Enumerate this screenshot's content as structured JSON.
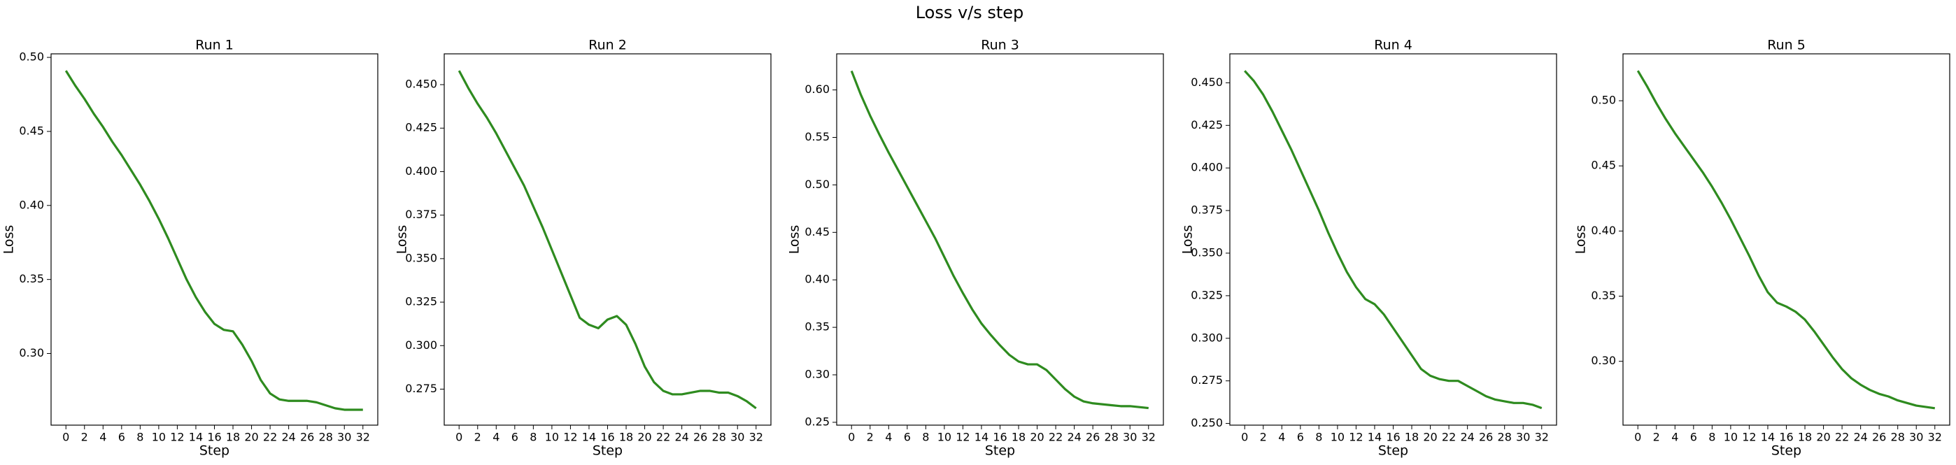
{
  "title": "Loss v/s step",
  "chart_data": [
    {
      "type": "line",
      "title": "Run 1",
      "xlabel": "Step",
      "ylabel": "Loss",
      "x": [
        0,
        1,
        2,
        3,
        4,
        5,
        6,
        7,
        8,
        9,
        10,
        11,
        12,
        13,
        14,
        15,
        16,
        17,
        18,
        19,
        20,
        21,
        22,
        23,
        24,
        25,
        26,
        27,
        28,
        29,
        30,
        31,
        32
      ],
      "series": [
        {
          "color": "#2e8b1f",
          "values": [
            0.491,
            0.481,
            0.472,
            0.462,
            0.453,
            0.443,
            0.434,
            0.424,
            0.414,
            0.403,
            0.391,
            0.378,
            0.364,
            0.35,
            0.338,
            0.328,
            0.32,
            0.316,
            0.315,
            0.306,
            0.295,
            0.282,
            0.273,
            0.269,
            0.268,
            0.268,
            0.268,
            0.267,
            0.265,
            0.263,
            0.262,
            0.262,
            0.262
          ]
        }
      ],
      "xlim": [
        -1.6,
        33.6
      ],
      "xticks": [
        0,
        2,
        4,
        6,
        8,
        10,
        12,
        14,
        16,
        18,
        20,
        22,
        24,
        26,
        28,
        30,
        32
      ],
      "ylim": [
        0.2516,
        0.5024
      ],
      "yticks": [
        {
          "value": 0.3,
          "label": "0.30"
        },
        0.35,
        {
          "value": 0.4,
          "label": "0.40"
        },
        0.45,
        {
          "value": 0.5,
          "label": "0.50"
        }
      ]
    },
    {
      "type": "line",
      "title": "Run 2",
      "xlabel": "Step",
      "ylabel": "Loss",
      "x": [
        0,
        1,
        2,
        3,
        4,
        5,
        6,
        7,
        8,
        9,
        10,
        11,
        12,
        13,
        14,
        15,
        16,
        17,
        18,
        19,
        20,
        21,
        22,
        23,
        24,
        25,
        26,
        27,
        28,
        29,
        30,
        31,
        32
      ],
      "series": [
        {
          "color": "#2e8b1f",
          "values": [
            0.458,
            0.448,
            0.439,
            0.431,
            0.422,
            0.412,
            0.402,
            0.392,
            0.38,
            0.368,
            0.355,
            0.342,
            0.329,
            0.316,
            0.312,
            0.31,
            0.315,
            0.317,
            0.312,
            0.301,
            0.288,
            0.279,
            0.274,
            0.272,
            0.272,
            0.273,
            0.274,
            0.274,
            0.273,
            0.273,
            0.271,
            0.268,
            0.264
          ]
        }
      ],
      "xlim": [
        -1.6,
        33.6
      ],
      "xticks": [
        0,
        2,
        4,
        6,
        8,
        10,
        12,
        14,
        16,
        18,
        20,
        22,
        24,
        26,
        28,
        30,
        32
      ],
      "ylim": [
        0.2543,
        0.4677
      ],
      "yticks": [
        0.275,
        {
          "value": 0.3,
          "label": "0.300"
        },
        0.325,
        {
          "value": 0.35,
          "label": "0.350"
        },
        0.375,
        {
          "value": 0.4,
          "label": "0.400"
        },
        0.425,
        {
          "value": 0.45,
          "label": "0.450"
        }
      ]
    },
    {
      "type": "line",
      "title": "Run 3",
      "xlabel": "Step",
      "ylabel": "Loss",
      "x": [
        0,
        1,
        2,
        3,
        4,
        5,
        6,
        7,
        8,
        9,
        10,
        11,
        12,
        13,
        14,
        15,
        16,
        17,
        18,
        19,
        20,
        21,
        22,
        23,
        24,
        25,
        26,
        27,
        28,
        29,
        30,
        31,
        32
      ],
      "series": [
        {
          "color": "#2e8b1f",
          "values": [
            0.62,
            0.595,
            0.573,
            0.553,
            0.534,
            0.516,
            0.498,
            0.48,
            0.462,
            0.444,
            0.424,
            0.404,
            0.386,
            0.369,
            0.354,
            0.342,
            0.331,
            0.321,
            0.314,
            0.311,
            0.311,
            0.305,
            0.295,
            0.285,
            0.277,
            0.272,
            0.27,
            0.269,
            0.268,
            0.267,
            0.267,
            0.266,
            0.265
          ]
        }
      ],
      "xlim": [
        -1.6,
        33.6
      ],
      "xticks": [
        0,
        2,
        4,
        6,
        8,
        10,
        12,
        14,
        16,
        18,
        20,
        22,
        24,
        26,
        28,
        30,
        32
      ],
      "ylim": [
        0.247,
        0.638
      ],
      "yticks": [
        0.25,
        {
          "value": 0.3,
          "label": "0.30"
        },
        0.35,
        {
          "value": 0.4,
          "label": "0.40"
        },
        0.45,
        {
          "value": 0.5,
          "label": "0.50"
        },
        0.55,
        {
          "value": 0.6,
          "label": "0.60"
        }
      ]
    },
    {
      "type": "line",
      "title": "Run 4",
      "xlabel": "Step",
      "ylabel": "Loss",
      "x": [
        0,
        1,
        2,
        3,
        4,
        5,
        6,
        7,
        8,
        9,
        10,
        11,
        12,
        13,
        14,
        15,
        16,
        17,
        18,
        19,
        20,
        21,
        22,
        23,
        24,
        25,
        26,
        27,
        28,
        29,
        30,
        31,
        32
      ],
      "series": [
        {
          "color": "#2e8b1f",
          "values": [
            0.457,
            0.451,
            0.443,
            0.433,
            0.422,
            0.411,
            0.399,
            0.387,
            0.375,
            0.362,
            0.35,
            0.339,
            0.33,
            0.323,
            0.32,
            0.314,
            0.306,
            0.298,
            0.29,
            0.282,
            0.278,
            0.276,
            0.275,
            0.275,
            0.272,
            0.269,
            0.266,
            0.264,
            0.263,
            0.262,
            0.262,
            0.261,
            0.259
          ]
        }
      ],
      "xlim": [
        -1.6,
        33.6
      ],
      "xticks": [
        0,
        2,
        4,
        6,
        8,
        10,
        12,
        14,
        16,
        18,
        20,
        22,
        24,
        26,
        28,
        30,
        32
      ],
      "ylim": [
        0.249,
        0.467
      ],
      "yticks": [
        {
          "value": 0.25,
          "label": "0.250"
        },
        0.275,
        {
          "value": 0.3,
          "label": "0.300"
        },
        0.325,
        {
          "value": 0.35,
          "label": "0.350"
        },
        0.375,
        {
          "value": 0.4,
          "label": "0.400"
        },
        0.425,
        {
          "value": 0.45,
          "label": "0.450"
        }
      ]
    },
    {
      "type": "line",
      "title": "Run 5",
      "xlabel": "Step",
      "ylabel": "Loss",
      "x": [
        0,
        1,
        2,
        3,
        4,
        5,
        6,
        7,
        8,
        9,
        10,
        11,
        12,
        13,
        14,
        15,
        16,
        17,
        18,
        19,
        20,
        21,
        22,
        23,
        24,
        25,
        26,
        27,
        28,
        29,
        30,
        31,
        32
      ],
      "series": [
        {
          "color": "#2e8b1f",
          "values": [
            0.523,
            0.511,
            0.498,
            0.486,
            0.475,
            0.465,
            0.455,
            0.445,
            0.434,
            0.422,
            0.409,
            0.395,
            0.381,
            0.366,
            0.353,
            0.345,
            0.342,
            0.338,
            0.332,
            0.323,
            0.313,
            0.303,
            0.294,
            0.287,
            0.282,
            0.278,
            0.275,
            0.273,
            0.27,
            0.268,
            0.266,
            0.265,
            0.264
          ]
        }
      ],
      "xlim": [
        -1.6,
        33.6
      ],
      "xticks": [
        0,
        2,
        4,
        6,
        8,
        10,
        12,
        14,
        16,
        18,
        20,
        22,
        24,
        26,
        28,
        30,
        32
      ],
      "ylim": [
        0.251,
        0.536
      ],
      "yticks": [
        {
          "value": 0.3,
          "label": "0.30"
        },
        0.35,
        {
          "value": 0.4,
          "label": "0.40"
        },
        0.45,
        {
          "value": 0.5,
          "label": "0.50"
        }
      ]
    }
  ]
}
